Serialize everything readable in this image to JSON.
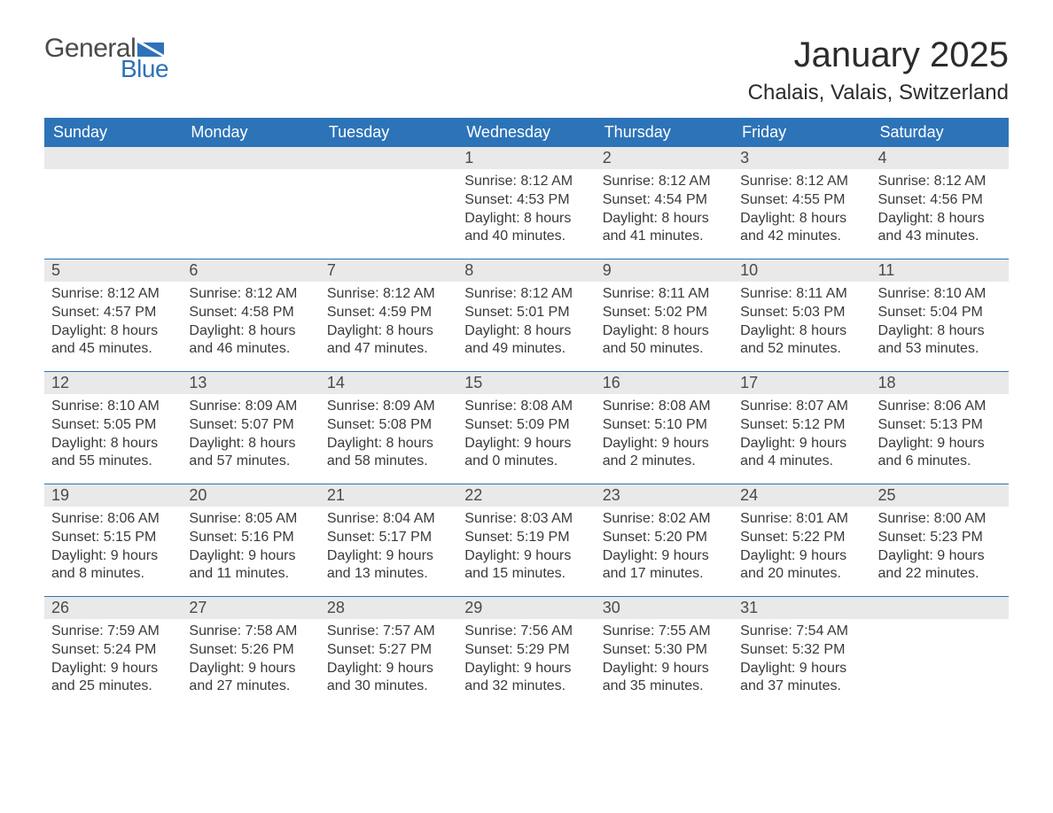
{
  "logo": {
    "general": "General",
    "blue": "Blue",
    "flag_color": "#2d73b8"
  },
  "title": "January 2025",
  "location": "Chalais, Valais, Switzerland",
  "colors": {
    "header_bg": "#2d73b8",
    "header_text": "#ffffff",
    "daynum_bg": "#e9e9e9",
    "week_border": "#2d73b8",
    "body_text": "#3a3a3a"
  },
  "weekdays": [
    "Sunday",
    "Monday",
    "Tuesday",
    "Wednesday",
    "Thursday",
    "Friday",
    "Saturday"
  ],
  "weeks": [
    [
      {
        "empty": true
      },
      {
        "empty": true
      },
      {
        "empty": true
      },
      {
        "day": "1",
        "sunrise": "Sunrise: 8:12 AM",
        "sunset": "Sunset: 4:53 PM",
        "daylight1": "Daylight: 8 hours",
        "daylight2": "and 40 minutes."
      },
      {
        "day": "2",
        "sunrise": "Sunrise: 8:12 AM",
        "sunset": "Sunset: 4:54 PM",
        "daylight1": "Daylight: 8 hours",
        "daylight2": "and 41 minutes."
      },
      {
        "day": "3",
        "sunrise": "Sunrise: 8:12 AM",
        "sunset": "Sunset: 4:55 PM",
        "daylight1": "Daylight: 8 hours",
        "daylight2": "and 42 minutes."
      },
      {
        "day": "4",
        "sunrise": "Sunrise: 8:12 AM",
        "sunset": "Sunset: 4:56 PM",
        "daylight1": "Daylight: 8 hours",
        "daylight2": "and 43 minutes."
      }
    ],
    [
      {
        "day": "5",
        "sunrise": "Sunrise: 8:12 AM",
        "sunset": "Sunset: 4:57 PM",
        "daylight1": "Daylight: 8 hours",
        "daylight2": "and 45 minutes."
      },
      {
        "day": "6",
        "sunrise": "Sunrise: 8:12 AM",
        "sunset": "Sunset: 4:58 PM",
        "daylight1": "Daylight: 8 hours",
        "daylight2": "and 46 minutes."
      },
      {
        "day": "7",
        "sunrise": "Sunrise: 8:12 AM",
        "sunset": "Sunset: 4:59 PM",
        "daylight1": "Daylight: 8 hours",
        "daylight2": "and 47 minutes."
      },
      {
        "day": "8",
        "sunrise": "Sunrise: 8:12 AM",
        "sunset": "Sunset: 5:01 PM",
        "daylight1": "Daylight: 8 hours",
        "daylight2": "and 49 minutes."
      },
      {
        "day": "9",
        "sunrise": "Sunrise: 8:11 AM",
        "sunset": "Sunset: 5:02 PM",
        "daylight1": "Daylight: 8 hours",
        "daylight2": "and 50 minutes."
      },
      {
        "day": "10",
        "sunrise": "Sunrise: 8:11 AM",
        "sunset": "Sunset: 5:03 PM",
        "daylight1": "Daylight: 8 hours",
        "daylight2": "and 52 minutes."
      },
      {
        "day": "11",
        "sunrise": "Sunrise: 8:10 AM",
        "sunset": "Sunset: 5:04 PM",
        "daylight1": "Daylight: 8 hours",
        "daylight2": "and 53 minutes."
      }
    ],
    [
      {
        "day": "12",
        "sunrise": "Sunrise: 8:10 AM",
        "sunset": "Sunset: 5:05 PM",
        "daylight1": "Daylight: 8 hours",
        "daylight2": "and 55 minutes."
      },
      {
        "day": "13",
        "sunrise": "Sunrise: 8:09 AM",
        "sunset": "Sunset: 5:07 PM",
        "daylight1": "Daylight: 8 hours",
        "daylight2": "and 57 minutes."
      },
      {
        "day": "14",
        "sunrise": "Sunrise: 8:09 AM",
        "sunset": "Sunset: 5:08 PM",
        "daylight1": "Daylight: 8 hours",
        "daylight2": "and 58 minutes."
      },
      {
        "day": "15",
        "sunrise": "Sunrise: 8:08 AM",
        "sunset": "Sunset: 5:09 PM",
        "daylight1": "Daylight: 9 hours",
        "daylight2": "and 0 minutes."
      },
      {
        "day": "16",
        "sunrise": "Sunrise: 8:08 AM",
        "sunset": "Sunset: 5:10 PM",
        "daylight1": "Daylight: 9 hours",
        "daylight2": "and 2 minutes."
      },
      {
        "day": "17",
        "sunrise": "Sunrise: 8:07 AM",
        "sunset": "Sunset: 5:12 PM",
        "daylight1": "Daylight: 9 hours",
        "daylight2": "and 4 minutes."
      },
      {
        "day": "18",
        "sunrise": "Sunrise: 8:06 AM",
        "sunset": "Sunset: 5:13 PM",
        "daylight1": "Daylight: 9 hours",
        "daylight2": "and 6 minutes."
      }
    ],
    [
      {
        "day": "19",
        "sunrise": "Sunrise: 8:06 AM",
        "sunset": "Sunset: 5:15 PM",
        "daylight1": "Daylight: 9 hours",
        "daylight2": "and 8 minutes."
      },
      {
        "day": "20",
        "sunrise": "Sunrise: 8:05 AM",
        "sunset": "Sunset: 5:16 PM",
        "daylight1": "Daylight: 9 hours",
        "daylight2": "and 11 minutes."
      },
      {
        "day": "21",
        "sunrise": "Sunrise: 8:04 AM",
        "sunset": "Sunset: 5:17 PM",
        "daylight1": "Daylight: 9 hours",
        "daylight2": "and 13 minutes."
      },
      {
        "day": "22",
        "sunrise": "Sunrise: 8:03 AM",
        "sunset": "Sunset: 5:19 PM",
        "daylight1": "Daylight: 9 hours",
        "daylight2": "and 15 minutes."
      },
      {
        "day": "23",
        "sunrise": "Sunrise: 8:02 AM",
        "sunset": "Sunset: 5:20 PM",
        "daylight1": "Daylight: 9 hours",
        "daylight2": "and 17 minutes."
      },
      {
        "day": "24",
        "sunrise": "Sunrise: 8:01 AM",
        "sunset": "Sunset: 5:22 PM",
        "daylight1": "Daylight: 9 hours",
        "daylight2": "and 20 minutes."
      },
      {
        "day": "25",
        "sunrise": "Sunrise: 8:00 AM",
        "sunset": "Sunset: 5:23 PM",
        "daylight1": "Daylight: 9 hours",
        "daylight2": "and 22 minutes."
      }
    ],
    [
      {
        "day": "26",
        "sunrise": "Sunrise: 7:59 AM",
        "sunset": "Sunset: 5:24 PM",
        "daylight1": "Daylight: 9 hours",
        "daylight2": "and 25 minutes."
      },
      {
        "day": "27",
        "sunrise": "Sunrise: 7:58 AM",
        "sunset": "Sunset: 5:26 PM",
        "daylight1": "Daylight: 9 hours",
        "daylight2": "and 27 minutes."
      },
      {
        "day": "28",
        "sunrise": "Sunrise: 7:57 AM",
        "sunset": "Sunset: 5:27 PM",
        "daylight1": "Daylight: 9 hours",
        "daylight2": "and 30 minutes."
      },
      {
        "day": "29",
        "sunrise": "Sunrise: 7:56 AM",
        "sunset": "Sunset: 5:29 PM",
        "daylight1": "Daylight: 9 hours",
        "daylight2": "and 32 minutes."
      },
      {
        "day": "30",
        "sunrise": "Sunrise: 7:55 AM",
        "sunset": "Sunset: 5:30 PM",
        "daylight1": "Daylight: 9 hours",
        "daylight2": "and 35 minutes."
      },
      {
        "day": "31",
        "sunrise": "Sunrise: 7:54 AM",
        "sunset": "Sunset: 5:32 PM",
        "daylight1": "Daylight: 9 hours",
        "daylight2": "and 37 minutes."
      },
      {
        "empty": true
      }
    ]
  ]
}
